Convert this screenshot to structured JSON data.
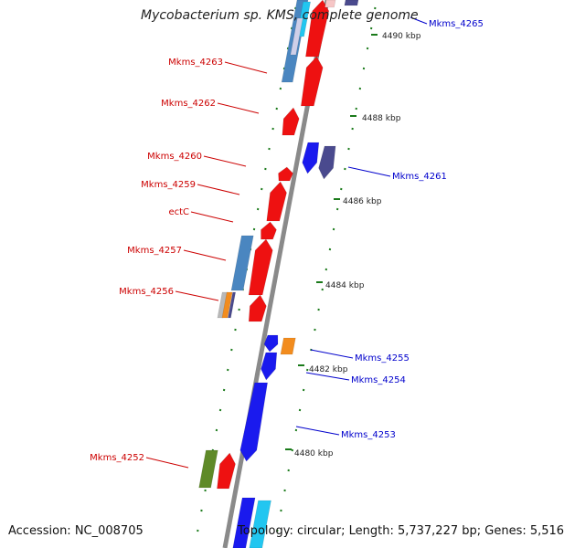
{
  "title": "Mycobacterium sp. KMS, complete genome",
  "footer": {
    "accession": "Accession: NC_008705",
    "summary": "Topology: circular; Length: 5,737,227 bp; Genes: 5,516"
  },
  "ticks": [
    {
      "label": "4490 kbp"
    },
    {
      "label": "4488 kbp"
    },
    {
      "label": "4486 kbp"
    },
    {
      "label": "4484 kbp"
    },
    {
      "label": "4482 kbp"
    },
    {
      "label": "4480 kbp"
    }
  ],
  "gene_labels": {
    "reverse": [
      "Mkms_4263",
      "Mkms_4262",
      "Mkms_4260",
      "Mkms_4259",
      "ectC",
      "Mkms_4257",
      "Mkms_4256",
      "Mkms_4252"
    ],
    "forward": [
      "Mkms_4265",
      "Mkms_4261",
      "Mkms_4255",
      "Mkms_4254",
      "Mkms_4253"
    ]
  },
  "colors": {
    "backbone": "#8a8a8a",
    "tick": "#1a7a1a",
    "reverse_label": "#cc0000",
    "forward_label": "#0000cc",
    "gene_red": "#ee1111",
    "gene_steelblue": "#4a86c0",
    "gene_blue": "#1a1aee",
    "gene_slate": "#4a4a8e",
    "gene_orange": "#f28c1e",
    "gene_olive": "#5f8a28",
    "gene_gray": "#b8b8b8",
    "gene_cyan": "#22c6f0"
  }
}
